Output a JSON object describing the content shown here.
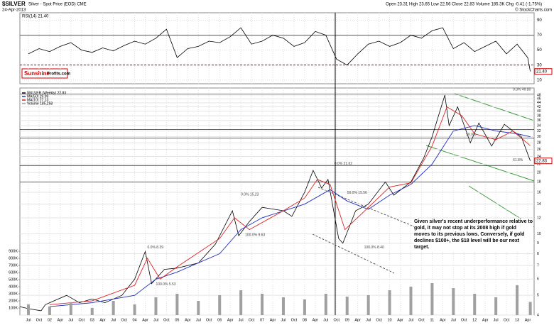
{
  "header": {
    "symbol": "$SILVER",
    "name": "Silver - Spot Price (EOD) CME",
    "date": "24-Apr-2013",
    "quote": "Open 23.31 High 23.65 Low 22.56 Close 22.83 Volume 185.3K Chg -0.41 (-1.75%)",
    "credit": "© StockCharts.com"
  },
  "logo": {
    "brand": "Sunshine",
    "site": "Profits.com"
  },
  "chart_data": [
    {
      "type": "line",
      "title": "RSI(14) 21.40",
      "color": "#000000",
      "x": [
        2001.5,
        2001.75,
        2002,
        2002.25,
        2002.5,
        2002.75,
        2003,
        2003.25,
        2003.5,
        2003.75,
        2004,
        2004.25,
        2004.5,
        2004.75,
        2005,
        2005.25,
        2005.5,
        2005.75,
        2006,
        2006.25,
        2006.5,
        2006.75,
        2007,
        2007.25,
        2007.5,
        2007.75,
        2008,
        2008.25,
        2008.5,
        2008.75,
        2009,
        2009.25,
        2009.5,
        2009.75,
        2010,
        2010.25,
        2010.5,
        2010.75,
        2011,
        2011.25,
        2011.5,
        2011.75,
        2012,
        2012.25,
        2012.5,
        2012.75,
        2013,
        2013.25,
        2013.31
      ],
      "values": [
        45,
        52,
        48,
        55,
        60,
        50,
        47,
        53,
        49,
        56,
        62,
        58,
        66,
        78,
        40,
        52,
        55,
        62,
        60,
        68,
        80,
        58,
        62,
        70,
        66,
        55,
        60,
        75,
        70,
        38,
        30,
        45,
        58,
        62,
        55,
        60,
        70,
        66,
        76,
        80,
        52,
        60,
        48,
        55,
        62,
        45,
        58,
        40,
        21.4
      ],
      "value_labels": [
        null,
        null,
        null,
        null,
        null,
        null,
        null,
        null,
        null,
        null,
        null,
        null,
        null,
        null,
        null,
        null,
        null,
        null,
        null,
        null,
        null,
        null,
        null,
        null,
        null,
        null,
        null,
        null,
        null,
        null,
        null,
        null,
        null,
        null,
        null,
        null,
        null,
        null,
        null,
        null,
        null,
        null,
        null,
        null,
        null,
        null,
        null,
        null,
        "21.40"
      ],
      "ylim": [
        5,
        100
      ],
      "yticks": [
        10,
        30,
        50,
        70,
        90
      ],
      "hlines": [
        70,
        30
      ]
    },
    {
      "type": "line",
      "log_scale": true,
      "grid": true,
      "legend": "top-left",
      "xlim": [
        2001.3,
        2013.4
      ],
      "xticks": [
        {
          "value": 2001.5,
          "label": "Jul"
        },
        {
          "value": 2001.75,
          "label": "Oct"
        },
        {
          "value": 2002,
          "label": "02"
        },
        {
          "value": 2002.25,
          "label": "Apr"
        },
        {
          "value": 2002.5,
          "label": "Jul"
        },
        {
          "value": 2002.75,
          "label": "Oct"
        },
        {
          "value": 2003,
          "label": "03"
        },
        {
          "value": 2003.25,
          "label": "Apr"
        },
        {
          "value": 2003.5,
          "label": "Jul"
        },
        {
          "value": 2003.75,
          "label": "Oct"
        },
        {
          "value": 2004,
          "label": "04"
        },
        {
          "value": 2004.25,
          "label": "Apr"
        },
        {
          "value": 2004.5,
          "label": "Jul"
        },
        {
          "value": 2004.75,
          "label": "Oct"
        },
        {
          "value": 2005,
          "label": "05"
        },
        {
          "value": 2005.25,
          "label": "Apr"
        },
        {
          "value": 2005.5,
          "label": "Jul"
        },
        {
          "value": 2005.75,
          "label": "Oct"
        },
        {
          "value": 2006,
          "label": "06"
        },
        {
          "value": 2006.25,
          "label": "Apr"
        },
        {
          "value": 2006.5,
          "label": "Jul"
        },
        {
          "value": 2006.75,
          "label": "Oct"
        },
        {
          "value": 2007,
          "label": "07"
        },
        {
          "value": 2007.25,
          "label": "Apr"
        },
        {
          "value": 2007.5,
          "label": "Jul"
        },
        {
          "value": 2007.75,
          "label": "Oct"
        },
        {
          "value": 2008,
          "label": "08"
        },
        {
          "value": 2008.25,
          "label": "Apr"
        },
        {
          "value": 2008.5,
          "label": "Jul"
        },
        {
          "value": 2008.75,
          "label": "Oct"
        },
        {
          "value": 2009,
          "label": "09"
        },
        {
          "value": 2009.25,
          "label": "Apr"
        },
        {
          "value": 2009.5,
          "label": "Jul"
        },
        {
          "value": 2009.75,
          "label": "Oct"
        },
        {
          "value": 2010,
          "label": "10"
        },
        {
          "value": 2010.25,
          "label": "Apr"
        },
        {
          "value": 2010.5,
          "label": "Jul"
        },
        {
          "value": 2010.75,
          "label": "Oct"
        },
        {
          "value": 2011,
          "label": "11"
        },
        {
          "value": 2011.25,
          "label": "Apr"
        },
        {
          "value": 2011.5,
          "label": "Jul"
        },
        {
          "value": 2011.75,
          "label": "Oct"
        },
        {
          "value": 2012,
          "label": "12"
        },
        {
          "value": 2012.25,
          "label": "Apr"
        },
        {
          "value": 2012.5,
          "label": "Jul"
        },
        {
          "value": 2012.75,
          "label": "Oct"
        },
        {
          "value": 2013,
          "label": "13"
        },
        {
          "value": 2013.25,
          "label": "Apr"
        }
      ],
      "ylim": [
        4,
        52
      ],
      "yticks": [
        4,
        5,
        6,
        7,
        8,
        9,
        10,
        12,
        14,
        16,
        18,
        20,
        22,
        24,
        26,
        28,
        30,
        32,
        34,
        36,
        38,
        40,
        42,
        44,
        46,
        48
      ],
      "y2lim": [
        0,
        1000000
      ],
      "y2ticks": [
        {
          "value": 100000,
          "label": "100K"
        },
        {
          "value": 200000,
          "label": "200K"
        },
        {
          "value": 300000,
          "label": "300K"
        },
        {
          "value": 400000,
          "label": "400K"
        },
        {
          "value": 500000,
          "label": "500K"
        },
        {
          "value": 600000,
          "label": "600K"
        },
        {
          "value": 700000,
          "label": "700K"
        },
        {
          "value": 800000,
          "label": "800K"
        },
        {
          "value": 900000,
          "label": "900K"
        }
      ],
      "series": [
        {
          "name": "$SILVER (Weekly) 22.83",
          "color": "#000000",
          "x": [
            2001.3,
            2001.5,
            2001.8,
            2001.9,
            2002.0,
            2002.4,
            2002.7,
            2003.0,
            2003.3,
            2003.7,
            2004.0,
            2004.25,
            2004.4,
            2004.7,
            2005.0,
            2005.5,
            2005.9,
            2006.3,
            2006.45,
            2006.7,
            2007.0,
            2007.5,
            2007.7,
            2008.0,
            2008.2,
            2008.4,
            2008.55,
            2008.8,
            2008.9,
            2009.2,
            2009.5,
            2009.9,
            2010.1,
            2010.5,
            2010.8,
            2011.0,
            2011.3,
            2011.4,
            2011.6,
            2011.9,
            2012.1,
            2012.4,
            2012.7,
            2012.9,
            2013.1,
            2013.31
          ],
          "values": [
            4.4,
            4.3,
            4.2,
            4.5,
            4.6,
            5.0,
            4.6,
            4.8,
            4.6,
            5.0,
            6.0,
            8.2,
            5.7,
            6.7,
            6.8,
            7.2,
            8.9,
            13.0,
            9.8,
            11.5,
            13.5,
            13.0,
            12.2,
            16.0,
            20.5,
            16.8,
            18.5,
            9.5,
            9.0,
            13.0,
            14.0,
            18.0,
            15.5,
            18.0,
            23.5,
            30,
            48,
            34,
            42,
            28,
            35,
            27,
            34.5,
            32,
            30,
            22.83
          ],
          "value_labels": [
            null,
            null,
            null,
            null,
            null,
            null,
            null,
            null,
            null,
            null,
            null,
            null,
            null,
            null,
            null,
            null,
            null,
            null,
            null,
            null,
            null,
            null,
            null,
            null,
            null,
            null,
            null,
            null,
            null,
            null,
            null,
            null,
            null,
            null,
            null,
            null,
            null,
            null,
            null,
            null,
            null,
            null,
            null,
            null,
            null,
            "22.83"
          ]
        },
        {
          "name": "MA(50) 29.99",
          "color": "#1f2fbf",
          "x": [
            2002,
            2003,
            2004,
            2004.5,
            2005,
            2006,
            2006.5,
            2007,
            2008,
            2008.6,
            2009,
            2009.5,
            2010,
            2010.5,
            2011,
            2011.5,
            2012,
            2012.5,
            2013,
            2013.31
          ],
          "values": [
            4.4,
            4.6,
            5.0,
            6.0,
            6.5,
            8.0,
            10.5,
            12.0,
            14.0,
            16.5,
            14.5,
            13.2,
            15.5,
            17.5,
            22,
            32,
            34,
            32,
            31,
            29.99
          ]
        },
        {
          "name": "MA(10) 27.13",
          "color": "#e02020",
          "x": [
            2002,
            2003,
            2004,
            2004.3,
            2004.6,
            2005,
            2006,
            2006.35,
            2006.7,
            2007.5,
            2008,
            2008.3,
            2008.6,
            2008.95,
            2009.5,
            2010,
            2010.5,
            2011,
            2011.35,
            2011.7,
            2012,
            2012.5,
            2012.9,
            2013.31
          ],
          "values": [
            4.5,
            4.7,
            5.6,
            7.6,
            6.0,
            6.9,
            9.5,
            12.0,
            10.5,
            13.0,
            15.0,
            18.5,
            17.5,
            10.5,
            13.5,
            17.0,
            17.8,
            27,
            42,
            38,
            31,
            29,
            32,
            27.13
          ]
        },
        {
          "name": "Volume 185,258",
          "color": "#a0a0a0",
          "type": "bar",
          "axis": "y2",
          "x": [
            2001.5,
            2002,
            2002.5,
            2003,
            2003.5,
            2004,
            2004.5,
            2005,
            2005.5,
            2006,
            2006.5,
            2007,
            2007.5,
            2008,
            2008.5,
            2009,
            2009.5,
            2010,
            2010.5,
            2011,
            2011.5,
            2012,
            2012.5,
            2013,
            2013.31
          ],
          "values": [
            150000,
            120000,
            180000,
            100000,
            200000,
            150000,
            250000,
            300000,
            200000,
            280000,
            350000,
            300000,
            250000,
            220000,
            300000,
            260000,
            280000,
            350000,
            400000,
            450000,
            380000,
            300000,
            250000,
            420000,
            185258
          ]
        }
      ],
      "hlines": [
        48.5,
        32.5,
        29.5,
        21.62,
        18
      ],
      "vline": 2008.72,
      "annotations": [
        {
          "text": "0.0% 8.39",
          "x": 2004.3,
          "y": 8.39
        },
        {
          "text": "100.0% 5.53",
          "x": 2004.5,
          "y": 5.53
        },
        {
          "text": "0.0% 15.23",
          "x": 2006.5,
          "y": 15.23
        },
        {
          "text": "100.0% 9.63",
          "x": 2006.6,
          "y": 9.63
        },
        {
          "text": "0.0% 21.62",
          "x": 2008.7,
          "y": 21.62
        },
        {
          "text": "50.0% 15.56",
          "x": 2009.0,
          "y": 15.56
        },
        {
          "text": "100.0% 8.40",
          "x": 2009.4,
          "y": 8.4
        },
        {
          "text": "0.0% 49.80",
          "x": 2012.9,
          "y": 49.8
        },
        {
          "text": "50.0%",
          "x": 2011.8,
          "y": 30
        },
        {
          "text": "61.8%",
          "x": 2012.9,
          "y": 22.5
        }
      ],
      "callout": "Given silver's recent underperformance relative to gold, it may not stop at its 2008 high if gold moves to its previous lows. Conversely, if gold declines $100+, the $18 level will be our next target."
    }
  ]
}
